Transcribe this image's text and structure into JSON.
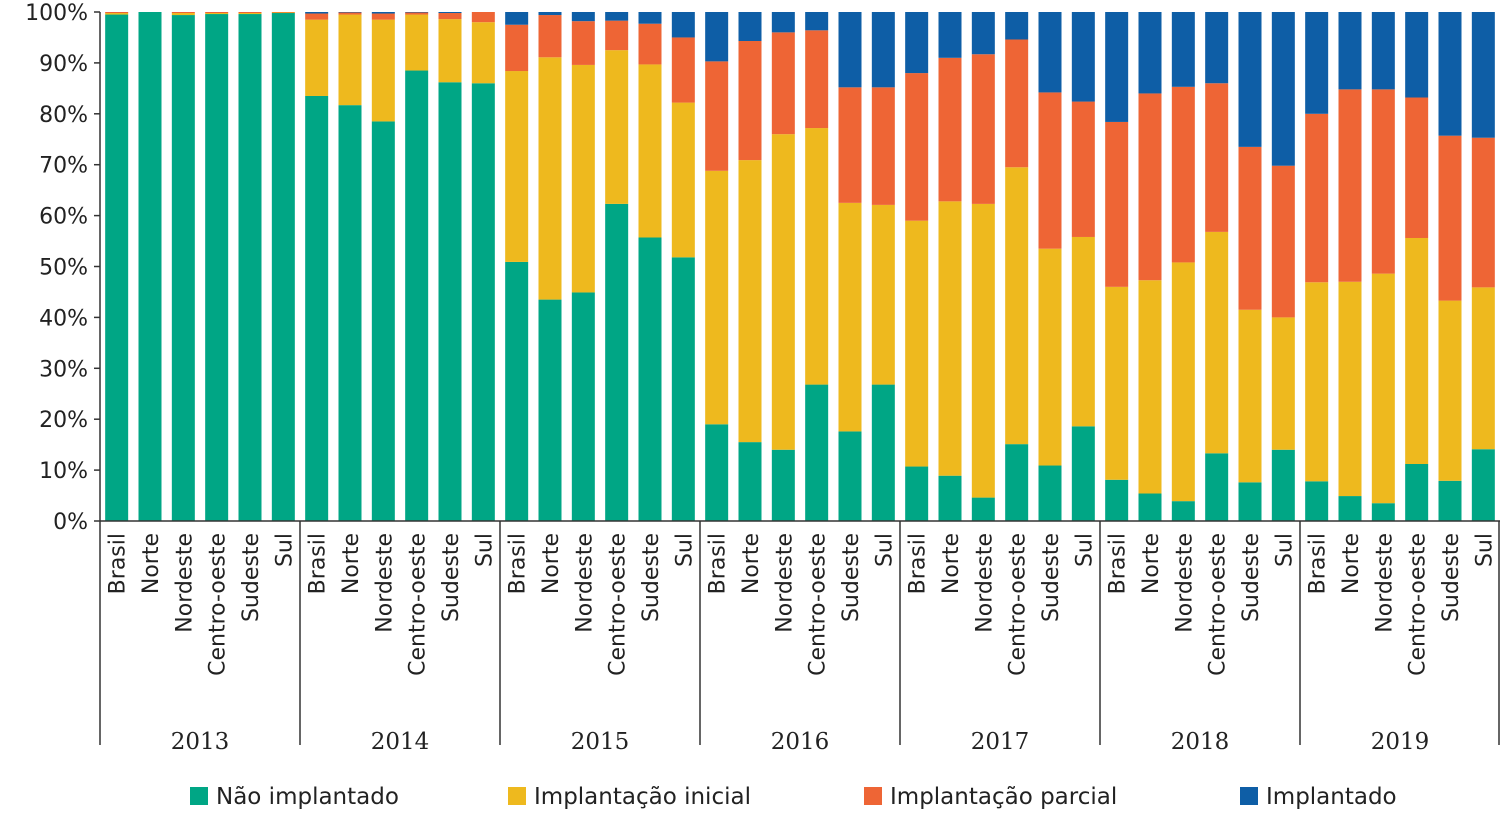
{
  "chart_data": {
    "type": "bar",
    "stacked": true,
    "percent": true,
    "ylim": [
      0,
      100
    ],
    "yticks": [
      0,
      10,
      20,
      30,
      40,
      50,
      60,
      70,
      80,
      90,
      100
    ],
    "ytick_labels": [
      "0%",
      "10%",
      "20%",
      "30%",
      "40%",
      "50%",
      "60%",
      "70%",
      "80%",
      "90%",
      "100%"
    ],
    "grid": false,
    "legend_position": "bottom",
    "regions": [
      "Brasil",
      "Norte",
      "Nordeste",
      "Centro-oeste",
      "Sudeste",
      "Sul"
    ],
    "years": [
      "2013",
      "2014",
      "2015",
      "2016",
      "2017",
      "2018",
      "2019"
    ],
    "series": [
      {
        "name": "Não implantado",
        "color": "#00a685",
        "values": [
          99.5,
          100,
          99.4,
          99.6,
          99.6,
          99.8,
          83.5,
          81.7,
          78.5,
          88.5,
          86.2,
          86.0,
          50.9,
          43.5,
          44.9,
          62.3,
          55.7,
          51.8,
          19.0,
          15.5,
          14.0,
          26.8,
          17.6,
          26.8,
          10.7,
          8.9,
          4.6,
          15.1,
          10.9,
          18.6,
          8.1,
          5.4,
          3.9,
          13.3,
          7.6,
          14.0,
          7.8,
          4.9,
          3.5,
          11.2,
          7.9,
          14.1
        ]
      },
      {
        "name": "Implantação inicial",
        "color": "#eeb91e",
        "values": [
          0.3,
          0,
          0.4,
          0.2,
          0.2,
          0.1,
          15.0,
          17.8,
          20.0,
          11.0,
          12.4,
          12.0,
          37.5,
          47.6,
          44.7,
          30.2,
          34.0,
          30.4,
          49.8,
          55.4,
          62.0,
          50.4,
          44.9,
          35.3,
          48.3,
          53.9,
          57.7,
          54.4,
          42.6,
          37.2,
          37.9,
          41.9,
          46.9,
          43.5,
          33.9,
          26.0,
          39.1,
          42.1,
          45.1,
          44.4,
          35.4,
          31.8
        ]
      },
      {
        "name": "Implantação parcial",
        "color": "#ee6535",
        "values": [
          0.2,
          0,
          0.2,
          0.2,
          0.2,
          0.1,
          1.2,
          0.4,
          1.2,
          0.4,
          1.2,
          2.0,
          9.1,
          8.3,
          8.6,
          5.8,
          8.0,
          12.8,
          21.5,
          23.4,
          20.0,
          19.2,
          22.7,
          23.1,
          29.0,
          28.2,
          29.4,
          25.1,
          30.7,
          26.6,
          32.4,
          36.7,
          34.5,
          29.2,
          32.0,
          29.8,
          33.1,
          37.8,
          36.2,
          27.6,
          32.4,
          29.4
        ]
      },
      {
        "name": "Implantado",
        "color": "#0e5ea6",
        "values": [
          0,
          0,
          0,
          0,
          0,
          0,
          0.3,
          0.1,
          0.3,
          0.1,
          0.2,
          0,
          2.5,
          0.6,
          1.8,
          1.7,
          2.3,
          5.0,
          9.7,
          5.7,
          4.0,
          3.6,
          14.8,
          14.8,
          12.0,
          9.0,
          8.3,
          5.4,
          15.8,
          17.6,
          21.6,
          16.0,
          14.7,
          14.0,
          26.5,
          30.2,
          20.0,
          15.2,
          15.2,
          16.8,
          24.3,
          24.7
        ]
      }
    ]
  }
}
